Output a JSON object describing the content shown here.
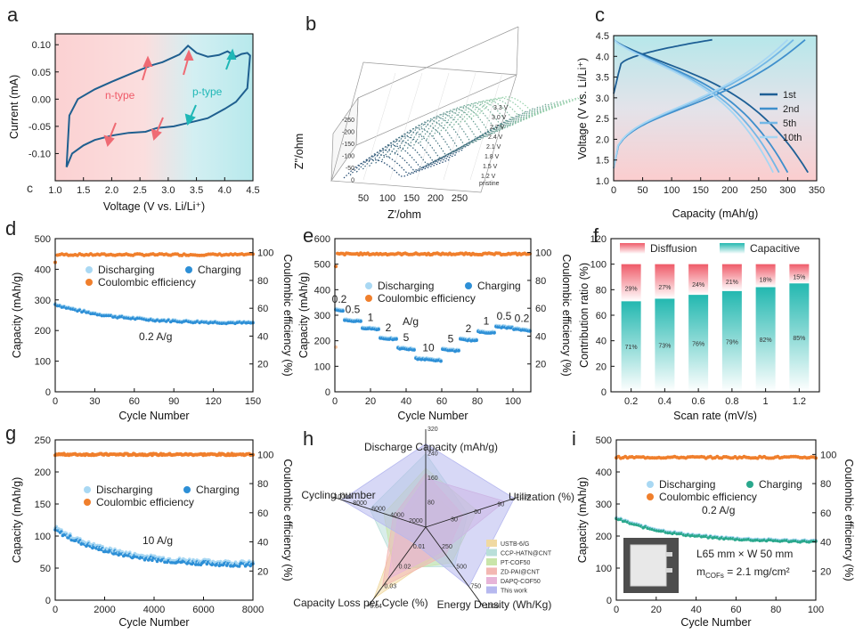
{
  "panels": {
    "a": {
      "letter": "a",
      "xlabel": "Voltage (V vs. Li/Li⁺)",
      "ylabel": "Current (mA)",
      "n_label": "n-type",
      "p_label": "p-type",
      "stray": "c"
    },
    "b": {
      "letter": "b",
      "xlabel": "Z'/ohm",
      "ylabel": "Z''/ohm",
      "pristine": "pristine",
      "potentials": [
        "1.2 V",
        "1.5 V",
        "1.8 V",
        "2.1 V",
        "2.4 V",
        "2.7 V",
        "3.0 V",
        "3.3 V"
      ]
    },
    "c": {
      "letter": "c",
      "xlabel": "Capacity (mAh/g)",
      "ylabel": "Voltage (V vs. Li/Li⁺)"
    },
    "d": {
      "letter": "d",
      "xlabel": "Cycle Number",
      "ylabel": "Capacity (mAh/g)",
      "y2label": "Coulombic efficiency (%)",
      "rate": "0.2 A/g"
    },
    "e": {
      "letter": "e",
      "xlabel": "Cycle Number",
      "ylabel": "Capacity (mAh/g)",
      "y2label": "Coulombic efficiency (%)",
      "unit": "A/g"
    },
    "f": {
      "letter": "f",
      "xlabel": "Scan rate (mV/s)",
      "ylabel": "Contribution ratio (%)"
    },
    "g": {
      "letter": "g",
      "xlabel": "Cycle Number",
      "ylabel": "Capacity (mAh/g)",
      "y2label": "Coulombic efficiency (%)",
      "rate": "10 A/g"
    },
    "h": {
      "letter": "h"
    },
    "i": {
      "letter": "i",
      "xlabel": "Cycle Number",
      "ylabel": "Capacity (mAh/g)",
      "y2label": "Coulombic efficiency (%)",
      "rate": "0.2 A/g",
      "inset_line1": "L65 mm × W 50 mm",
      "inset_line2": "m",
      "inset_sub": "COFs",
      "inset_line3": " = 2.1 mg/cm²"
    }
  },
  "legend_labels": {
    "discharging": "Discharging",
    "charging": "Charging",
    "ce": "Coulombic efficiency"
  },
  "colors": {
    "blue": "#2d8fd6",
    "lightblue": "#a9d8f3",
    "orange": "#f07f2c",
    "lightorange": "#f8c49d",
    "teal": "#2aa88d",
    "cv_line": "#1f5f8f",
    "red": "#ef5a68",
    "cyan": "#23b8b0"
  },
  "chart_data": [
    {
      "panel": "a",
      "type": "line",
      "xlim": [
        1.0,
        4.5
      ],
      "ylim": [
        -0.15,
        0.12
      ],
      "xticks": [
        1.0,
        1.5,
        2.0,
        2.5,
        3.0,
        3.5,
        4.0,
        4.5
      ],
      "yticks": [
        -0.1,
        -0.05,
        0.0,
        0.05,
        0.1
      ],
      "series": [
        {
          "upper": [
            [
              1.2,
              -0.125
            ],
            [
              1.25,
              -0.03
            ],
            [
              1.4,
              0.0
            ],
            [
              1.7,
              0.018
            ],
            [
              2.0,
              0.032
            ],
            [
              2.3,
              0.045
            ],
            [
              2.6,
              0.058
            ],
            [
              2.7,
              0.062
            ],
            [
              2.9,
              0.068
            ],
            [
              3.2,
              0.082
            ],
            [
              3.35,
              0.098
            ],
            [
              3.5,
              0.085
            ],
            [
              3.7,
              0.078
            ],
            [
              3.9,
              0.081
            ],
            [
              4.05,
              0.088
            ],
            [
              4.2,
              0.078
            ],
            [
              4.3,
              0.083
            ],
            [
              4.4,
              0.085
            ],
            [
              4.45,
              0.08
            ]
          ],
          "lower": [
            [
              4.45,
              0.08
            ],
            [
              4.4,
              0.02
            ],
            [
              4.2,
              -0.005
            ],
            [
              4.0,
              -0.018
            ],
            [
              3.7,
              -0.035
            ],
            [
              3.5,
              -0.04
            ],
            [
              3.3,
              -0.045
            ],
            [
              3.1,
              -0.05
            ],
            [
              2.8,
              -0.053
            ],
            [
              2.6,
              -0.06
            ],
            [
              2.3,
              -0.062
            ],
            [
              2.0,
              -0.067
            ],
            [
              1.7,
              -0.075
            ],
            [
              1.5,
              -0.085
            ],
            [
              1.3,
              -0.1
            ],
            [
              1.2,
              -0.125
            ]
          ]
        }
      ]
    },
    {
      "panel": "b",
      "type": "line",
      "xticks": [
        50,
        100,
        150,
        200,
        250
      ],
      "yticks": [
        -250,
        -200,
        -150,
        -100,
        -50,
        0
      ],
      "n_curves": 22
    },
    {
      "panel": "c",
      "type": "line",
      "xlim": [
        0,
        350
      ],
      "ylim": [
        1.0,
        4.5
      ],
      "xticks": [
        0,
        50,
        100,
        150,
        200,
        250,
        300,
        350
      ],
      "yticks": [
        1.0,
        1.5,
        2.0,
        2.5,
        3.0,
        3.5,
        4.0,
        4.5
      ],
      "series": [
        {
          "name": "1st",
          "color": "#1e5f95",
          "charge_end": 170,
          "discharge_end": 335,
          "first_start": 3.1
        },
        {
          "name": "2nd",
          "color": "#3f8fcc",
          "charge_end": 330,
          "discharge_end": 300
        },
        {
          "name": "5th",
          "color": "#73b7e6",
          "charge_end": 310,
          "discharge_end": 285
        },
        {
          "name": "10th",
          "color": "#a6d6f3",
          "charge_end": 300,
          "discharge_end": 275
        }
      ]
    },
    {
      "panel": "d",
      "type": "scatter",
      "xlim": [
        0,
        150
      ],
      "ylim": [
        0,
        500
      ],
      "y2lim": [
        0,
        110
      ],
      "xticks": [
        0,
        30,
        60,
        90,
        120,
        150
      ],
      "yticks": [
        0,
        100,
        200,
        300,
        400,
        500
      ],
      "y2ticks": [
        20,
        40,
        60,
        80,
        100
      ],
      "capacity": {
        "start": 285,
        "end": 222
      },
      "ce": {
        "start": 93,
        "value": 98.5
      }
    },
    {
      "panel": "e",
      "type": "scatter",
      "xlim": [
        0,
        110
      ],
      "ylim": [
        0,
        600
      ],
      "y2lim": [
        0,
        110
      ],
      "xticks": [
        0,
        20,
        40,
        60,
        80,
        100
      ],
      "yticks": [
        0,
        100,
        200,
        300,
        400,
        500,
        600
      ],
      "y2ticks": [
        20,
        40,
        60,
        80,
        100
      ],
      "steps": [
        {
          "rate": "0.2",
          "from": 0,
          "to": 5,
          "cap": 320
        },
        {
          "rate": "0.5",
          "from": 5,
          "to": 15,
          "cap": 280
        },
        {
          "rate": "1",
          "from": 15,
          "to": 25,
          "cap": 250
        },
        {
          "rate": "2",
          "from": 25,
          "to": 35,
          "cap": 210
        },
        {
          "rate": "5",
          "from": 35,
          "to": 45,
          "cap": 170
        },
        {
          "rate": "10",
          "from": 45,
          "to": 60,
          "cap": 130
        },
        {
          "rate": "5",
          "from": 60,
          "to": 70,
          "cap": 165
        },
        {
          "rate": "2",
          "from": 70,
          "to": 80,
          "cap": 205
        },
        {
          "rate": "1",
          "from": 80,
          "to": 90,
          "cap": 235
        },
        {
          "rate": "0.5",
          "from": 90,
          "to": 100,
          "cap": 255
        },
        {
          "rate": "0.2",
          "from": 100,
          "to": 110,
          "cap": 245
        }
      ],
      "ce": {
        "value": 99
      }
    },
    {
      "panel": "f",
      "type": "bar",
      "categories": [
        "0.2",
        "0.4",
        "0.6",
        "0.8",
        "1",
        "1.2"
      ],
      "ylim": [
        0,
        120
      ],
      "yticks": [
        0,
        20,
        40,
        60,
        80,
        100,
        120
      ],
      "series": [
        {
          "name": "Capacitive",
          "values": [
            71,
            73,
            76,
            79,
            82,
            85
          ]
        },
        {
          "name": "Disffusion",
          "values": [
            29,
            27,
            24,
            21,
            18,
            15
          ]
        }
      ],
      "value_labels_capacitive": [
        "71%",
        "73%",
        "76%",
        "79%",
        "82%",
        "85%"
      ],
      "value_labels_diffusion": [
        "29%",
        "27%",
        "24%",
        "21%",
        "18%",
        "15%"
      ]
    },
    {
      "panel": "g",
      "type": "scatter",
      "xlim": [
        0,
        8000
      ],
      "ylim": [
        0,
        250
      ],
      "y2lim": [
        0,
        110
      ],
      "xticks": [
        0,
        2000,
        4000,
        6000,
        8000
      ],
      "yticks": [
        0,
        50,
        100,
        150,
        200,
        250
      ],
      "y2ticks": [
        20,
        40,
        60,
        80,
        100
      ],
      "capacity": {
        "start": 110,
        "end": 53
      },
      "ce": {
        "value": 100
      }
    },
    {
      "panel": "h",
      "type": "radar",
      "axes": [
        "Discharge Capacity (mAh/g)",
        "Utilization (%)",
        "Energy Density (Wh/Kg)",
        "Capacity Loss per Cycle (%)",
        "Cycling number"
      ],
      "ticks": [
        [
          "80",
          "160",
          "240",
          "320"
        ],
        [
          "30",
          "60",
          "90",
          "120"
        ],
        [
          "250",
          "500",
          "750",
          "1000"
        ],
        [
          "0.01",
          "0.02",
          "0.03",
          "0.04"
        ],
        [
          "2000",
          "4000",
          "6000",
          "8000",
          "10000"
        ]
      ],
      "series": [
        {
          "name": "USTB-6/G",
          "color": "#f0d9a2",
          "values": [
            0.4,
            0.35,
            0.3,
            0.9,
            0.25
          ]
        },
        {
          "name": "CCP-HATN@CNT",
          "color": "#b9dfd9",
          "values": [
            0.75,
            0.45,
            0.5,
            0.5,
            0.6
          ]
        },
        {
          "name": "PT-COF50",
          "color": "#c9e5a9",
          "values": [
            0.6,
            0.55,
            0.45,
            0.55,
            0.45
          ]
        },
        {
          "name": "ZD-PAI@CNT",
          "color": "#f3b7b2",
          "values": [
            0.55,
            0.4,
            0.35,
            0.75,
            0.35
          ]
        },
        {
          "name": "DAPQ-COF50",
          "color": "#e7b4d8",
          "values": [
            0.5,
            0.85,
            0.3,
            0.65,
            0.3
          ]
        },
        {
          "name": "This work",
          "color": "#b6b8ef",
          "values": [
            0.85,
            0.95,
            0.75,
            0.2,
            0.9
          ]
        }
      ]
    },
    {
      "panel": "i",
      "type": "scatter",
      "xlim": [
        0,
        100
      ],
      "ylim": [
        0,
        500
      ],
      "y2lim": [
        0,
        110
      ],
      "xticks": [
        0,
        20,
        40,
        60,
        80,
        100
      ],
      "yticks": [
        0,
        100,
        200,
        300,
        400,
        500
      ],
      "y2ticks": [
        20,
        40,
        60,
        80,
        100
      ],
      "capacity": {
        "start": 255,
        "end": 180
      },
      "ce": {
        "value": 98
      }
    }
  ]
}
